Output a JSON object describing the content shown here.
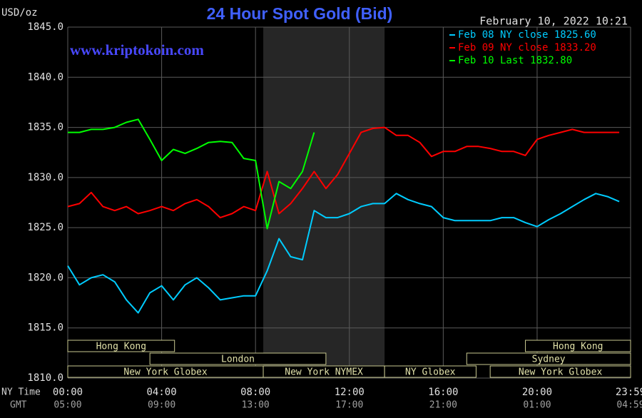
{
  "chart_data": {
    "type": "line",
    "title": "24 Hour Spot Gold (Bid)",
    "y_label": "USD/oz",
    "timestamp": "February 10, 2022 10:21",
    "watermark": "www.kriptokoin.com",
    "x_label": "NY Time",
    "x2_label": "GMT",
    "x": [
      0,
      0.5,
      1,
      1.5,
      2,
      2.5,
      3,
      3.5,
      4,
      4.5,
      5,
      5.5,
      6,
      6.5,
      7,
      7.5,
      8,
      8.5,
      9,
      9.5,
      10,
      10.5,
      11,
      11.5,
      12,
      12.5,
      13,
      13.5,
      14,
      14.5,
      15,
      15.5,
      16,
      16.5,
      17,
      17.5,
      18,
      18.5,
      19,
      19.5,
      20,
      20.5,
      21,
      21.5,
      22,
      22.5,
      23,
      23.5
    ],
    "xlim": [
      0,
      23.983
    ],
    "xticks": [
      {
        "value": 0,
        "label": "00:00"
      },
      {
        "value": 4,
        "label": "04:00"
      },
      {
        "value": 8,
        "label": "08:00"
      },
      {
        "value": 12,
        "label": "12:00"
      },
      {
        "value": 16,
        "label": "16:00"
      },
      {
        "value": 20,
        "label": "20:00"
      },
      {
        "value": 23.983,
        "label": "23:59"
      }
    ],
    "x2ticks": [
      "05:00",
      "09:00",
      "13:00",
      "17:00",
      "21:00",
      "01:00",
      "04:59"
    ],
    "ylim": [
      1810,
      1845
    ],
    "yticks": [
      {
        "value": 1810,
        "label": "1810.0"
      },
      {
        "value": 1815,
        "label": "1815.0"
      },
      {
        "value": 1820,
        "label": "1820.0"
      },
      {
        "value": 1825,
        "label": "1825.0"
      },
      {
        "value": 1830,
        "label": "1830.0"
      },
      {
        "value": 1835,
        "label": "1835.0"
      },
      {
        "value": 1840,
        "label": "1840.0"
      },
      {
        "value": 1845,
        "label": "1845.0"
      }
    ],
    "grid": true,
    "legend": "top-right",
    "series": [
      {
        "name": "Feb 08 NY close 1825.60",
        "color": "#00ccff",
        "values": [
          1821.2,
          1819.3,
          1820,
          1820.3,
          1819.6,
          1817.8,
          1816.5,
          1818.5,
          1819.2,
          1817.8,
          1819.3,
          1820,
          1819,
          1817.8,
          1818,
          1818.2,
          1818.2,
          1820.7,
          1823.9,
          1822.1,
          1821.8,
          1826.7,
          1826,
          1826,
          1826.4,
          1827.1,
          1827.4,
          1827.4,
          1828.4,
          1827.8,
          1827.4,
          1827.1,
          1826,
          1825.7,
          1825.7,
          1825.7,
          1825.7,
          1826,
          1826,
          1825.5,
          1825.1,
          1825.8,
          1826.4,
          1827.1,
          1827.8,
          1828.4,
          1828.1,
          1827.6
        ]
      },
      {
        "name": "Feb 09 NY close 1833.20",
        "color": "#ff0000",
        "values": [
          1827.1,
          1827.4,
          1828.5,
          1827.1,
          1826.7,
          1827.1,
          1826.4,
          1826.7,
          1827.1,
          1826.7,
          1827.4,
          1827.8,
          1827.1,
          1826,
          1826.4,
          1827.1,
          1826.7,
          1830.6,
          1826.4,
          1827.4,
          1828.9,
          1830.6,
          1828.9,
          1830.3,
          1832.4,
          1834.5,
          1834.9,
          1835,
          1834.2,
          1834.2,
          1833.5,
          1832.1,
          1832.6,
          1832.6,
          1833.1,
          1833.1,
          1832.9,
          1832.6,
          1832.6,
          1832.2,
          1833.8,
          1834.2,
          1834.5,
          1834.8,
          1834.5,
          1834.5,
          1834.5,
          1834.5
        ]
      },
      {
        "name": "Feb 10 Last 1832.80",
        "color": "#00ff00",
        "values": [
          1834.5,
          1834.5,
          1834.8,
          1834.8,
          1835,
          1835.5,
          1835.8,
          1833.8,
          1831.7,
          1832.8,
          1832.4,
          1832.9,
          1833.5,
          1833.6,
          1833.5,
          1831.9,
          1831.7,
          1824.9,
          1829.6,
          1828.9,
          1830.6,
          1834.5,
          null,
          null,
          null,
          null,
          null,
          null,
          null,
          null,
          null,
          null,
          null,
          null,
          null,
          null,
          null,
          null,
          null,
          null,
          null,
          null,
          null,
          null,
          null,
          null,
          null,
          null
        ]
      }
    ],
    "session_rows": [
      [
        {
          "label": "Hong Kong",
          "start": 0,
          "end": 4.55
        },
        {
          "label": "Hong Kong",
          "start": 19.5,
          "end": 23.983
        }
      ],
      [
        {
          "label": "London",
          "start": 3.5,
          "end": 11
        },
        {
          "label": "Sydney",
          "start": 17,
          "end": 23.983
        }
      ],
      [
        {
          "label": "New York Globex",
          "start": 0,
          "end": 8.33
        },
        {
          "label": "New York NYMEX",
          "start": 8.33,
          "end": 13.5
        },
        {
          "label": "NY Globex",
          "start": 13.5,
          "end": 17.4
        },
        {
          "label": "New York Globex",
          "start": 18,
          "end": 23.983
        }
      ]
    ],
    "pit_session": {
      "start": 8.33,
      "end": 13.5
    }
  }
}
